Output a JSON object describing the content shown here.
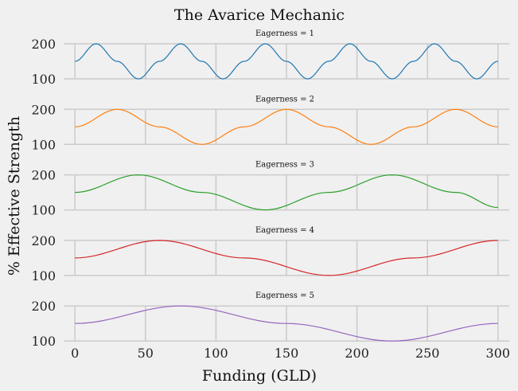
{
  "chart_data": {
    "type": "line",
    "title": "The Avarice Mechanic",
    "xlabel": "Funding (GLD)",
    "ylabel": "% Effective Strength",
    "xlim": [
      -8,
      308
    ],
    "ylim": [
      100,
      200
    ],
    "x_ticks": [
      "0",
      "50",
      "100",
      "150",
      "200",
      "250",
      "300"
    ],
    "y_ticks": [
      "100",
      "200"
    ],
    "grid": true,
    "series": [
      {
        "name": "Eagerness = 1",
        "color": "#1f77b4",
        "x": [
          0,
          15,
          30,
          45,
          60,
          75,
          90,
          105,
          120,
          135,
          150,
          165,
          180,
          195,
          210,
          225,
          240,
          255,
          270,
          285,
          300
        ],
        "y": [
          150,
          200,
          150,
          100,
          150,
          200,
          150,
          100,
          150,
          200,
          150,
          100,
          150,
          200,
          150,
          100,
          150,
          200,
          150,
          100,
          150
        ]
      },
      {
        "name": "Eagerness = 2",
        "color": "#ff7f0e",
        "x": [
          0,
          30,
          60,
          90,
          120,
          150,
          180,
          210,
          240,
          270,
          300
        ],
        "y": [
          150,
          200,
          150,
          100,
          150,
          200,
          150,
          100,
          150,
          200,
          150
        ]
      },
      {
        "name": "Eagerness = 3",
        "color": "#2ca02c",
        "x": [
          0,
          45,
          90,
          135,
          180,
          225,
          270,
          300
        ],
        "y": [
          150,
          200,
          150,
          100,
          150,
          200,
          150,
          107
        ]
      },
      {
        "name": "Eagerness = 4",
        "color": "#d62728",
        "x": [
          0,
          60,
          120,
          180,
          240,
          300
        ],
        "y": [
          150,
          200,
          150,
          100,
          150,
          200
        ]
      },
      {
        "name": "Eagerness = 5",
        "color": "#9467bd",
        "x": [
          0,
          75,
          150,
          225,
          300
        ],
        "y": [
          150,
          200,
          150,
          100,
          150
        ]
      }
    ]
  }
}
